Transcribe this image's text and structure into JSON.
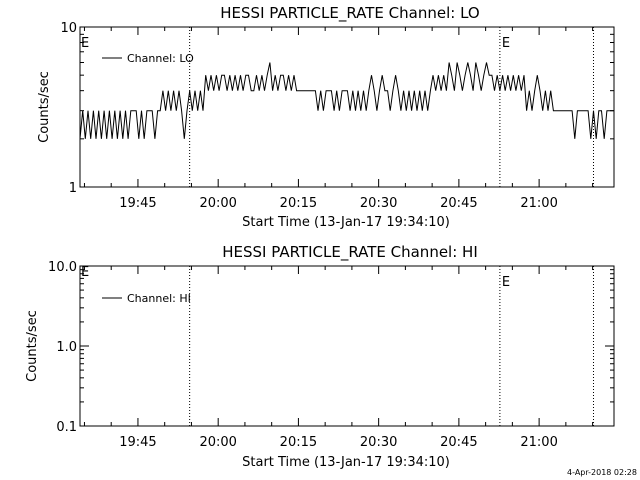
{
  "footer_date": "4-Apr-2018 02:28",
  "chart_data": [
    {
      "type": "line",
      "title": "HESSI PARTICLE_RATE Channel: LO",
      "xlabel": "Start Time (13-Jan-17 19:34:10)",
      "ylabel": "Counts/sec",
      "yscale": "log",
      "ylim": [
        1,
        10
      ],
      "xlim": [
        "19:34:10",
        "21:14:00"
      ],
      "x_ticks": [
        "19:45",
        "20:00",
        "20:15",
        "20:30",
        "20:45",
        "21:00"
      ],
      "y_ticks": [
        "1",
        "10"
      ],
      "legend": "top-left",
      "series": [
        {
          "name": "Channel: LO",
          "color": "#000000",
          "points": [
            [
              "19:34:10",
              2
            ],
            [
              "19:34:40",
              3
            ],
            [
              "19:35:10",
              2
            ],
            [
              "19:35:40",
              3
            ],
            [
              "19:36:10",
              2
            ],
            [
              "19:36:40",
              3
            ],
            [
              "19:37:10",
              2
            ],
            [
              "19:37:40",
              3
            ],
            [
              "19:38:10",
              2
            ],
            [
              "19:38:40",
              3
            ],
            [
              "19:39:10",
              2
            ],
            [
              "19:39:40",
              3
            ],
            [
              "19:40:10",
              2
            ],
            [
              "19:40:40",
              3
            ],
            [
              "19:41:10",
              2
            ],
            [
              "19:41:40",
              3
            ],
            [
              "19:42:10",
              2
            ],
            [
              "19:42:40",
              3
            ],
            [
              "19:43:10",
              2
            ],
            [
              "19:43:40",
              3
            ],
            [
              "19:44:10",
              3
            ],
            [
              "19:44:40",
              3
            ],
            [
              "19:45:10",
              2
            ],
            [
              "19:45:40",
              3
            ],
            [
              "19:46:10",
              2
            ],
            [
              "19:46:40",
              3
            ],
            [
              "19:47:10",
              3
            ],
            [
              "19:47:40",
              3
            ],
            [
              "19:48:10",
              2
            ],
            [
              "19:48:40",
              3
            ],
            [
              "19:49:10",
              3
            ],
            [
              "19:49:40",
              4
            ],
            [
              "19:50:10",
              3
            ],
            [
              "19:50:40",
              4
            ],
            [
              "19:51:10",
              3
            ],
            [
              "19:51:40",
              4
            ],
            [
              "19:52:10",
              3
            ],
            [
              "19:52:40",
              4
            ],
            [
              "19:53:10",
              3
            ],
            [
              "19:53:40",
              2
            ],
            [
              "19:54:10",
              3
            ],
            [
              "19:54:40",
              4
            ],
            [
              "19:55:10",
              3
            ],
            [
              "19:55:40",
              4
            ],
            [
              "19:56:10",
              3
            ],
            [
              "19:56:40",
              4
            ],
            [
              "19:57:10",
              3
            ],
            [
              "19:57:40",
              5
            ],
            [
              "19:58:10",
              4
            ],
            [
              "19:58:40",
              5
            ],
            [
              "19:59:10",
              4
            ],
            [
              "19:59:40",
              5
            ],
            [
              "20:00:10",
              4
            ],
            [
              "20:00:40",
              5
            ],
            [
              "20:01:10",
              5
            ],
            [
              "20:01:40",
              4
            ],
            [
              "20:02:10",
              5
            ],
            [
              "20:02:40",
              4
            ],
            [
              "20:03:10",
              5
            ],
            [
              "20:03:40",
              4
            ],
            [
              "20:04:10",
              5
            ],
            [
              "20:04:40",
              4
            ],
            [
              "20:05:10",
              5
            ],
            [
              "20:05:40",
              5
            ],
            [
              "20:06:10",
              4
            ],
            [
              "20:06:40",
              4
            ],
            [
              "20:07:10",
              5
            ],
            [
              "20:07:40",
              4
            ],
            [
              "20:08:10",
              5
            ],
            [
              "20:08:40",
              4
            ],
            [
              "20:09:10",
              5
            ],
            [
              "20:09:40",
              6
            ],
            [
              "20:10:10",
              4
            ],
            [
              "20:10:40",
              5
            ],
            [
              "20:11:10",
              4
            ],
            [
              "20:11:40",
              5
            ],
            [
              "20:12:10",
              5
            ],
            [
              "20:12:40",
              4
            ],
            [
              "20:13:10",
              5
            ],
            [
              "20:13:40",
              4
            ],
            [
              "20:14:10",
              5
            ],
            [
              "20:14:40",
              4
            ],
            [
              "20:15:10",
              4
            ],
            [
              "20:16:10",
              4
            ],
            [
              "20:17:10",
              4
            ],
            [
              "20:18:10",
              4
            ],
            [
              "20:18:40",
              3
            ],
            [
              "20:19:10",
              4
            ],
            [
              "20:19:40",
              3
            ],
            [
              "20:20:10",
              4
            ],
            [
              "20:21:10",
              4
            ],
            [
              "20:21:40",
              3
            ],
            [
              "20:22:10",
              4
            ],
            [
              "20:22:40",
              3
            ],
            [
              "20:23:10",
              4
            ],
            [
              "20:24:10",
              4
            ],
            [
              "20:24:40",
              3
            ],
            [
              "20:25:10",
              4
            ],
            [
              "20:25:40",
              3
            ],
            [
              "20:26:10",
              4
            ],
            [
              "20:26:40",
              3
            ],
            [
              "20:27:10",
              4
            ],
            [
              "20:27:40",
              3
            ],
            [
              "20:28:10",
              4
            ],
            [
              "20:28:40",
              5
            ],
            [
              "20:29:10",
              4
            ],
            [
              "20:29:40",
              3
            ],
            [
              "20:30:10",
              4
            ],
            [
              "20:30:40",
              5
            ],
            [
              "20:31:10",
              4
            ],
            [
              "20:31:40",
              4
            ],
            [
              "20:32:10",
              3
            ],
            [
              "20:32:40",
              4
            ],
            [
              "20:33:10",
              5
            ],
            [
              "20:33:40",
              4
            ],
            [
              "20:34:10",
              3
            ],
            [
              "20:34:40",
              4
            ],
            [
              "20:35:10",
              3
            ],
            [
              "20:35:40",
              4
            ],
            [
              "20:36:10",
              3
            ],
            [
              "20:36:40",
              4
            ],
            [
              "20:37:10",
              3
            ],
            [
              "20:37:40",
              4
            ],
            [
              "20:38:10",
              3
            ],
            [
              "20:38:40",
              4
            ],
            [
              "20:39:10",
              3
            ],
            [
              "20:39:40",
              4
            ],
            [
              "20:40:10",
              5
            ],
            [
              "20:40:40",
              4
            ],
            [
              "20:41:10",
              5
            ],
            [
              "20:41:40",
              4
            ],
            [
              "20:42:10",
              5
            ],
            [
              "20:42:40",
              4
            ],
            [
              "20:43:10",
              6
            ],
            [
              "20:43:40",
              5
            ],
            [
              "20:44:10",
              4
            ],
            [
              "20:44:40",
              6
            ],
            [
              "20:45:10",
              5
            ],
            [
              "20:45:40",
              4
            ],
            [
              "20:46:10",
              5
            ],
            [
              "20:46:40",
              6
            ],
            [
              "20:47:10",
              5
            ],
            [
              "20:47:40",
              4
            ],
            [
              "20:48:10",
              6
            ],
            [
              "20:48:40",
              5
            ],
            [
              "20:49:10",
              4
            ],
            [
              "20:49:40",
              5
            ],
            [
              "20:50:10",
              6
            ],
            [
              "20:50:40",
              5
            ],
            [
              "20:51:10",
              5
            ],
            [
              "20:51:40",
              4
            ],
            [
              "20:52:10",
              5
            ],
            [
              "20:52:40",
              4
            ],
            [
              "20:53:10",
              5
            ],
            [
              "20:53:40",
              4
            ],
            [
              "20:54:10",
              5
            ],
            [
              "20:54:40",
              4
            ],
            [
              "20:55:10",
              5
            ],
            [
              "20:55:40",
              4
            ],
            [
              "20:56:10",
              5
            ],
            [
              "20:56:40",
              4
            ],
            [
              "20:57:10",
              5
            ],
            [
              "20:57:40",
              3
            ],
            [
              "20:58:10",
              4
            ],
            [
              "20:58:40",
              3
            ],
            [
              "20:59:10",
              4
            ],
            [
              "20:59:40",
              5
            ],
            [
              "21:00:10",
              4
            ],
            [
              "21:00:40",
              3
            ],
            [
              "21:01:10",
              4
            ],
            [
              "21:01:40",
              3
            ],
            [
              "21:02:10",
              4
            ],
            [
              "21:02:40",
              3
            ],
            [
              "21:03:10",
              3
            ],
            [
              "21:04:10",
              3
            ],
            [
              "21:05:10",
              3
            ],
            [
              "21:06:10",
              3
            ],
            [
              "21:06:40",
              2
            ],
            [
              "21:07:10",
              3
            ],
            [
              "21:08:10",
              3
            ],
            [
              "21:09:10",
              3
            ],
            [
              "21:09:40",
              2
            ],
            [
              "21:10:10",
              3
            ],
            [
              "21:10:40",
              2
            ],
            [
              "21:11:10",
              3
            ],
            [
              "21:11:40",
              3
            ],
            [
              "21:12:10",
              2
            ],
            [
              "21:12:40",
              3
            ],
            [
              "21:13:10",
              3
            ],
            [
              "21:14:00",
              3
            ]
          ]
        }
      ],
      "markers": [
        {
          "time": "19:54:40",
          "label": ""
        },
        {
          "time": "20:52:40",
          "label": "E"
        },
        {
          "time": "21:10:10",
          "label": ""
        }
      ],
      "corner_label": "E"
    },
    {
      "type": "line",
      "title": "HESSI PARTICLE_RATE Channel: HI",
      "xlabel": "Start Time (13-Jan-17 19:34:10)",
      "ylabel": "Counts/sec",
      "yscale": "log",
      "ylim": [
        0.1,
        10
      ],
      "xlim": [
        "19:34:10",
        "21:14:00"
      ],
      "x_ticks": [
        "19:45",
        "20:00",
        "20:15",
        "20:30",
        "20:45",
        "21:00"
      ],
      "y_ticks": [
        "0.1",
        "1.0",
        "10.0"
      ],
      "legend": "top-left",
      "series": [
        {
          "name": "Channel: HI",
          "color": "#000000",
          "points": []
        }
      ],
      "markers": [
        {
          "time": "19:54:40",
          "label": ""
        },
        {
          "time": "20:52:40",
          "label": "E"
        },
        {
          "time": "21:10:10",
          "label": ""
        }
      ],
      "corner_label": "E"
    }
  ]
}
